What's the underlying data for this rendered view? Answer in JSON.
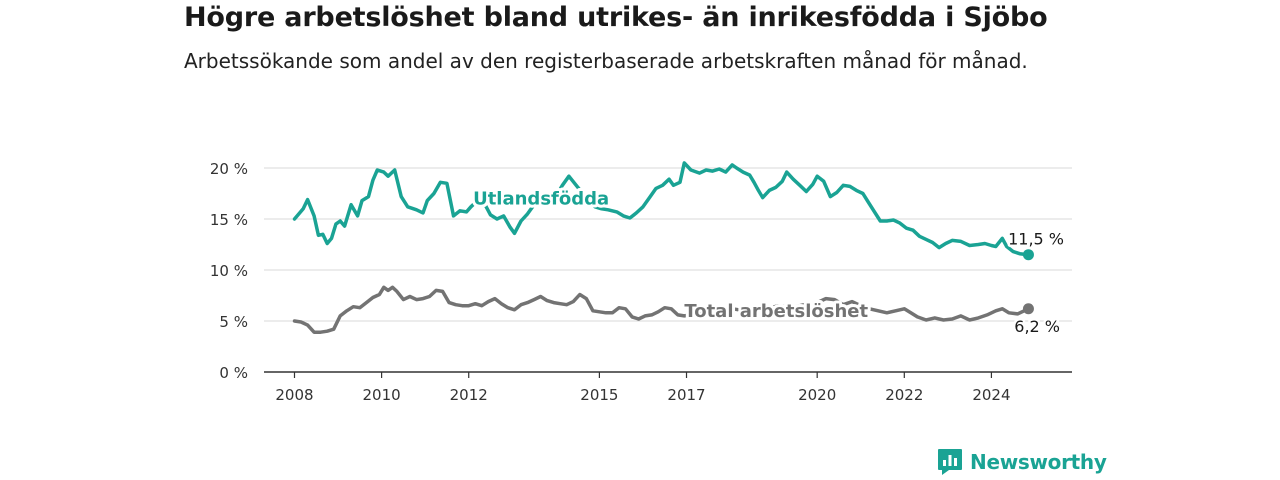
{
  "title": "Högre arbetslöshet bland utrikes- än inrikesfödda i Sjöbo",
  "subtitle": "Arbetssökande som andel av den registerbaserade arbetskraften månad för månad.",
  "brand": {
    "name": "Newsworthy",
    "icon": "newsworthy-logo-icon",
    "color": "#1aa394"
  },
  "chart_data": {
    "type": "line",
    "title": "Högre arbetslöshet bland utrikes- än inrikesfödda i Sjöbo",
    "ylim": [
      0,
      20
    ],
    "y_ticks": [
      0,
      5,
      10,
      15,
      20
    ],
    "y_tick_labels": [
      "0 %",
      "5 %",
      "10 %",
      "15 %",
      "20 %"
    ],
    "x_ticks": [
      2008,
      2010,
      2012,
      2015,
      2017,
      2020,
      2022,
      2024
    ],
    "x_tick_labels": [
      "2008",
      "2010",
      "2012",
      "2015",
      "2017",
      "2020",
      "2022",
      "2024"
    ],
    "grid": "horizontal",
    "series": [
      {
        "name": "Utlandsfödda",
        "color": "#1aa394",
        "end_label": "11,5 %",
        "points": [
          [
            2008.0,
            15.0
          ],
          [
            2008.2,
            16.0
          ],
          [
            2008.3,
            16.9
          ],
          [
            2008.45,
            15.3
          ],
          [
            2008.55,
            13.4
          ],
          [
            2008.65,
            13.5
          ],
          [
            2008.75,
            12.6
          ],
          [
            2008.85,
            13.1
          ],
          [
            2008.95,
            14.5
          ],
          [
            2009.05,
            14.8
          ],
          [
            2009.15,
            14.3
          ],
          [
            2009.3,
            16.4
          ],
          [
            2009.45,
            15.3
          ],
          [
            2009.55,
            16.8
          ],
          [
            2009.7,
            17.2
          ],
          [
            2009.8,
            18.8
          ],
          [
            2009.9,
            19.8
          ],
          [
            2010.05,
            19.6
          ],
          [
            2010.15,
            19.2
          ],
          [
            2010.3,
            19.8
          ],
          [
            2010.45,
            17.2
          ],
          [
            2010.6,
            16.2
          ],
          [
            2010.8,
            15.9
          ],
          [
            2010.95,
            15.6
          ],
          [
            2011.05,
            16.8
          ],
          [
            2011.2,
            17.5
          ],
          [
            2011.35,
            18.6
          ],
          [
            2011.5,
            18.5
          ],
          [
            2011.65,
            15.3
          ],
          [
            2011.8,
            15.8
          ],
          [
            2011.95,
            15.7
          ],
          [
            2012.05,
            16.2
          ],
          [
            2012.15,
            16.6
          ],
          [
            2012.25,
            17.3
          ],
          [
            2012.35,
            16.6
          ],
          [
            2012.5,
            15.4
          ],
          [
            2012.65,
            15.0
          ],
          [
            2012.8,
            15.3
          ],
          [
            2012.95,
            14.2
          ],
          [
            2013.05,
            13.6
          ],
          [
            2013.2,
            14.8
          ],
          [
            2013.35,
            15.5
          ],
          [
            2013.5,
            16.4
          ],
          [
            2013.6,
            16.8
          ],
          [
            2013.75,
            17.2
          ],
          [
            2014.0,
            17.2
          ],
          [
            2014.15,
            18.3
          ],
          [
            2014.3,
            19.2
          ],
          [
            2014.45,
            18.4
          ],
          [
            2014.6,
            17.6
          ],
          [
            2014.75,
            16.6
          ],
          [
            2014.9,
            16.2
          ],
          [
            2015.05,
            16.0
          ],
          [
            2015.2,
            15.9
          ],
          [
            2015.4,
            15.7
          ],
          [
            2015.55,
            15.3
          ],
          [
            2015.7,
            15.1
          ],
          [
            2015.85,
            15.6
          ],
          [
            2016.0,
            16.2
          ],
          [
            2016.15,
            17.1
          ],
          [
            2016.3,
            18.0
          ],
          [
            2016.45,
            18.3
          ],
          [
            2016.6,
            18.9
          ],
          [
            2016.7,
            18.3
          ],
          [
            2016.85,
            18.6
          ],
          [
            2016.95,
            20.5
          ],
          [
            2017.1,
            19.8
          ],
          [
            2017.3,
            19.5
          ],
          [
            2017.45,
            19.8
          ],
          [
            2017.6,
            19.7
          ],
          [
            2017.75,
            19.9
          ],
          [
            2017.9,
            19.6
          ],
          [
            2018.05,
            20.3
          ],
          [
            2018.15,
            20.0
          ],
          [
            2018.3,
            19.6
          ],
          [
            2018.45,
            19.3
          ],
          [
            2018.55,
            18.6
          ],
          [
            2018.65,
            17.8
          ],
          [
            2018.75,
            17.1
          ],
          [
            2018.9,
            17.8
          ],
          [
            2019.05,
            18.1
          ],
          [
            2019.2,
            18.7
          ],
          [
            2019.3,
            19.6
          ],
          [
            2019.45,
            18.9
          ],
          [
            2019.6,
            18.3
          ],
          [
            2019.75,
            17.7
          ],
          [
            2019.9,
            18.4
          ],
          [
            2020.0,
            19.2
          ],
          [
            2020.15,
            18.7
          ],
          [
            2020.3,
            17.2
          ],
          [
            2020.45,
            17.6
          ],
          [
            2020.6,
            18.3
          ],
          [
            2020.75,
            18.2
          ],
          [
            2020.9,
            17.8
          ],
          [
            2021.05,
            17.5
          ],
          [
            2021.15,
            16.8
          ],
          [
            2021.3,
            15.8
          ],
          [
            2021.45,
            14.8
          ],
          [
            2021.6,
            14.8
          ],
          [
            2021.75,
            14.9
          ],
          [
            2021.9,
            14.6
          ],
          [
            2022.05,
            14.1
          ],
          [
            2022.2,
            13.9
          ],
          [
            2022.35,
            13.3
          ],
          [
            2022.5,
            13.0
          ],
          [
            2022.65,
            12.7
          ],
          [
            2022.8,
            12.2
          ],
          [
            2022.95,
            12.6
          ],
          [
            2023.1,
            12.9
          ],
          [
            2023.3,
            12.8
          ],
          [
            2023.5,
            12.4
          ],
          [
            2023.7,
            12.5
          ],
          [
            2023.85,
            12.6
          ],
          [
            2024.0,
            12.4
          ],
          [
            2024.1,
            12.3
          ],
          [
            2024.25,
            13.1
          ],
          [
            2024.35,
            12.3
          ],
          [
            2024.5,
            11.8
          ],
          [
            2024.65,
            11.6
          ],
          [
            2024.85,
            11.5
          ]
        ]
      },
      {
        "name": "Total arbetslöshet",
        "color": "#737373",
        "end_label": "6,2 %",
        "points": [
          [
            2008.0,
            5.0
          ],
          [
            2008.15,
            4.9
          ],
          [
            2008.3,
            4.6
          ],
          [
            2008.45,
            3.9
          ],
          [
            2008.6,
            3.9
          ],
          [
            2008.75,
            4.0
          ],
          [
            2008.9,
            4.2
          ],
          [
            2009.05,
            5.5
          ],
          [
            2009.2,
            6.0
          ],
          [
            2009.35,
            6.4
          ],
          [
            2009.5,
            6.3
          ],
          [
            2009.65,
            6.8
          ],
          [
            2009.8,
            7.3
          ],
          [
            2009.95,
            7.6
          ],
          [
            2010.05,
            8.3
          ],
          [
            2010.15,
            8.0
          ],
          [
            2010.25,
            8.3
          ],
          [
            2010.35,
            7.9
          ],
          [
            2010.5,
            7.1
          ],
          [
            2010.65,
            7.4
          ],
          [
            2010.8,
            7.1
          ],
          [
            2010.95,
            7.2
          ],
          [
            2011.1,
            7.4
          ],
          [
            2011.25,
            8.0
          ],
          [
            2011.4,
            7.9
          ],
          [
            2011.55,
            6.8
          ],
          [
            2011.7,
            6.6
          ],
          [
            2011.85,
            6.5
          ],
          [
            2012.0,
            6.5
          ],
          [
            2012.15,
            6.7
          ],
          [
            2012.3,
            6.5
          ],
          [
            2012.45,
            6.9
          ],
          [
            2012.6,
            7.2
          ],
          [
            2012.75,
            6.7
          ],
          [
            2012.9,
            6.3
          ],
          [
            2013.05,
            6.1
          ],
          [
            2013.2,
            6.6
          ],
          [
            2013.35,
            6.8
          ],
          [
            2013.5,
            7.1
          ],
          [
            2013.65,
            7.4
          ],
          [
            2013.8,
            7.0
          ],
          [
            2013.95,
            6.8
          ],
          [
            2014.1,
            6.7
          ],
          [
            2014.25,
            6.6
          ],
          [
            2014.4,
            6.9
          ],
          [
            2014.55,
            7.6
          ],
          [
            2014.7,
            7.2
          ],
          [
            2014.85,
            6.0
          ],
          [
            2015.0,
            5.9
          ],
          [
            2015.15,
            5.8
          ],
          [
            2015.3,
            5.8
          ],
          [
            2015.45,
            6.3
          ],
          [
            2015.6,
            6.2
          ],
          [
            2015.75,
            5.4
          ],
          [
            2015.9,
            5.2
          ],
          [
            2016.05,
            5.5
          ],
          [
            2016.2,
            5.6
          ],
          [
            2016.35,
            5.9
          ],
          [
            2016.5,
            6.3
          ],
          [
            2016.65,
            6.2
          ],
          [
            2016.8,
            5.6
          ],
          [
            2016.95,
            5.5
          ],
          [
            2017.1,
            5.6
          ],
          [
            2017.3,
            5.9
          ],
          [
            2017.5,
            6.2
          ],
          [
            2017.7,
            6.0
          ],
          [
            2017.9,
            6.3
          ],
          [
            2018.2,
            6.1
          ],
          [
            2018.5,
            6.3
          ],
          [
            2018.8,
            6.1
          ],
          [
            2019.1,
            6.5
          ],
          [
            2019.4,
            6.3
          ],
          [
            2019.7,
            6.6
          ],
          [
            2020.0,
            6.8
          ],
          [
            2020.2,
            7.2
          ],
          [
            2020.4,
            7.1
          ],
          [
            2020.6,
            6.6
          ],
          [
            2020.8,
            6.9
          ],
          [
            2021.0,
            6.5
          ],
          [
            2021.2,
            6.2
          ],
          [
            2021.4,
            6.0
          ],
          [
            2021.6,
            5.8
          ],
          [
            2021.8,
            6.0
          ],
          [
            2022.0,
            6.2
          ],
          [
            2022.15,
            5.8
          ],
          [
            2022.3,
            5.4
          ],
          [
            2022.5,
            5.1
          ],
          [
            2022.7,
            5.3
          ],
          [
            2022.9,
            5.1
          ],
          [
            2023.1,
            5.2
          ],
          [
            2023.3,
            5.5
          ],
          [
            2023.5,
            5.1
          ],
          [
            2023.7,
            5.3
          ],
          [
            2023.9,
            5.6
          ],
          [
            2024.1,
            6.0
          ],
          [
            2024.25,
            6.2
          ],
          [
            2024.4,
            5.8
          ],
          [
            2024.6,
            5.7
          ],
          [
            2024.85,
            6.2
          ]
        ]
      }
    ]
  }
}
